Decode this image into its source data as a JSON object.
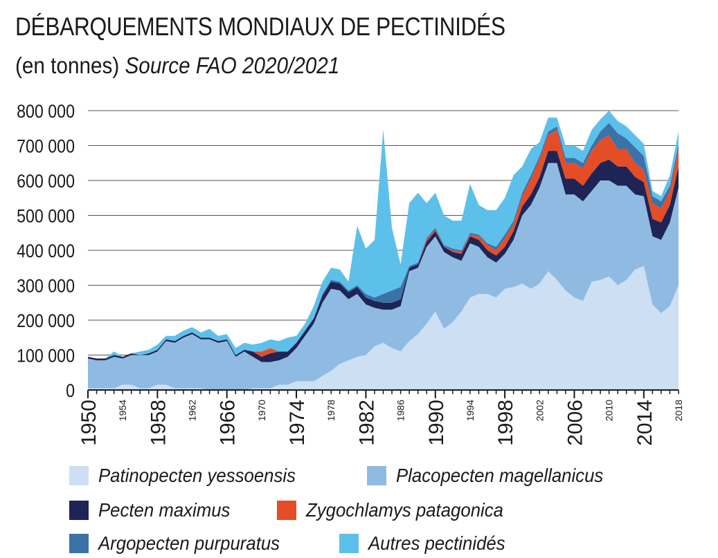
{
  "header": {
    "title": "DÉBARQUEMENTS MONDIAUX DE PECTINIDÉS",
    "subtitle_unit": "(en tonnes)",
    "subtitle_source": "Source FAO 2020/2021"
  },
  "chart_data": {
    "type": "area",
    "stacked": true,
    "x": [
      1950,
      1951,
      1952,
      1953,
      1954,
      1955,
      1956,
      1957,
      1958,
      1959,
      1960,
      1961,
      1962,
      1963,
      1964,
      1965,
      1966,
      1967,
      1968,
      1969,
      1970,
      1971,
      1972,
      1973,
      1974,
      1975,
      1976,
      1977,
      1978,
      1979,
      1980,
      1981,
      1982,
      1983,
      1984,
      1985,
      1986,
      1987,
      1988,
      1989,
      1990,
      1991,
      1992,
      1993,
      1994,
      1995,
      1996,
      1997,
      1998,
      1999,
      2000,
      2001,
      2002,
      2003,
      2004,
      2005,
      2006,
      2007,
      2008,
      2009,
      2010,
      2011,
      2012,
      2013,
      2014,
      2015,
      2016,
      2017,
      2018
    ],
    "ylim": [
      0,
      800000
    ],
    "y_ticks": [
      0,
      100000,
      200000,
      300000,
      400000,
      500000,
      600000,
      700000,
      800000
    ],
    "y_tick_labels": [
      "0",
      "100 000",
      "200 000",
      "300 000",
      "400 000",
      "500 000",
      "600 000",
      "700 000",
      "800 000"
    ],
    "x_ticks_major": [
      1950,
      1958,
      1966,
      1974,
      1982,
      1990,
      1998,
      2006,
      2014
    ],
    "x_tick_labels_major": [
      "1950",
      "1958",
      "1966",
      "1974",
      "1982",
      "1990",
      "1998",
      "2006",
      "2014"
    ],
    "x_ticks_minor": [
      1954,
      1962,
      1970,
      1978,
      1986,
      1994,
      2002,
      2010,
      2018
    ],
    "x_tick_labels_minor": [
      "1954",
      "1962",
      "1970",
      "1978",
      "1986",
      "1994",
      "2002",
      "2010",
      "2018"
    ],
    "grid": "horizontal",
    "legend_position": "bottom",
    "series": [
      {
        "name": "Patinopecten yessoensis",
        "color": "#cddff3",
        "values": [
          5000,
          5000,
          5000,
          5000,
          15000,
          15000,
          5000,
          5000,
          15000,
          15000,
          5000,
          5000,
          5000,
          5000,
          0,
          0,
          0,
          0,
          0,
          5000,
          5000,
          5000,
          15000,
          15000,
          25000,
          25000,
          25000,
          40000,
          55000,
          75000,
          85000,
          95000,
          100000,
          125000,
          135000,
          120000,
          110000,
          140000,
          160000,
          190000,
          225000,
          175000,
          195000,
          225000,
          265000,
          275000,
          275000,
          265000,
          290000,
          295000,
          305000,
          290000,
          305000,
          340000,
          315000,
          285000,
          265000,
          255000,
          310000,
          315000,
          325000,
          300000,
          315000,
          345000,
          355000,
          245000,
          220000,
          240000,
          300000
        ]
      },
      {
        "name": "Placopecten magellanicus",
        "color": "#8fbbe2",
        "values": [
          85000,
          80000,
          80000,
          90000,
          75000,
          85000,
          95000,
          95000,
          95000,
          125000,
          130000,
          145000,
          155000,
          140000,
          145000,
          135000,
          140000,
          95000,
          110000,
          90000,
          75000,
          75000,
          70000,
          80000,
          95000,
          130000,
          165000,
          210000,
          235000,
          210000,
          175000,
          180000,
          145000,
          110000,
          95000,
          110000,
          130000,
          200000,
          190000,
          220000,
          215000,
          220000,
          185000,
          145000,
          155000,
          135000,
          105000,
          100000,
          100000,
          135000,
          195000,
          240000,
          275000,
          310000,
          335000,
          275000,
          295000,
          285000,
          260000,
          285000,
          275000,
          285000,
          270000,
          215000,
          200000,
          195000,
          210000,
          240000,
          280000
        ]
      },
      {
        "name": "Pecten maximus",
        "color": "#1e2456",
        "values": [
          5000,
          5000,
          5000,
          5000,
          5000,
          5000,
          0,
          5000,
          5000,
          5000,
          5000,
          5000,
          5000,
          5000,
          5000,
          5000,
          5000,
          5000,
          5000,
          15000,
          15000,
          25000,
          25000,
          15000,
          15000,
          15000,
          15000,
          20000,
          20000,
          20000,
          20000,
          20000,
          20000,
          20000,
          20000,
          20000,
          20000,
          10000,
          10000,
          15000,
          15000,
          15000,
          15000,
          20000,
          20000,
          20000,
          20000,
          20000,
          20000,
          25000,
          25000,
          30000,
          30000,
          35000,
          35000,
          45000,
          45000,
          45000,
          50000,
          50000,
          60000,
          55000,
          55000,
          50000,
          40000,
          50000,
          50000,
          50000,
          60000
        ]
      },
      {
        "name": "Zygochlamys patagonica",
        "color": "#e54d26",
        "values": [
          0,
          0,
          0,
          0,
          0,
          0,
          0,
          0,
          0,
          0,
          0,
          0,
          0,
          0,
          0,
          0,
          0,
          0,
          0,
          0,
          15000,
          15000,
          0,
          0,
          0,
          0,
          0,
          0,
          0,
          0,
          0,
          0,
          0,
          0,
          0,
          0,
          0,
          0,
          0,
          5000,
          5000,
          0,
          5000,
          5000,
          5000,
          10000,
          15000,
          15000,
          25000,
          20000,
          30000,
          45000,
          50000,
          45000,
          60000,
          45000,
          45000,
          50000,
          65000,
          65000,
          70000,
          50000,
          50000,
          40000,
          35000,
          45000,
          40000,
          40000,
          50000
        ]
      },
      {
        "name": "Argopecten purpuratus",
        "color": "#3b72a8",
        "values": [
          0,
          0,
          0,
          0,
          0,
          0,
          0,
          0,
          0,
          0,
          0,
          0,
          0,
          0,
          0,
          0,
          0,
          0,
          0,
          0,
          0,
          0,
          0,
          0,
          0,
          0,
          0,
          5000,
          5000,
          5000,
          5000,
          5000,
          10000,
          10000,
          25000,
          35000,
          35000,
          5000,
          5000,
          5000,
          5000,
          5000,
          5000,
          5000,
          5000,
          5000,
          5000,
          10000,
          10000,
          10000,
          10000,
          10000,
          10000,
          10000,
          10000,
          15000,
          15000,
          15000,
          15000,
          25000,
          35000,
          45000,
          30000,
          45000,
          40000,
          20000,
          20000,
          15000,
          15000
        ]
      },
      {
        "name": "Autres pectinidés",
        "color": "#5dc0ea",
        "values": [
          0,
          0,
          0,
          10000,
          0,
          0,
          10000,
          10000,
          15000,
          10000,
          15000,
          15000,
          15000,
          15000,
          25000,
          15000,
          15000,
          20000,
          20000,
          20000,
          25000,
          25000,
          30000,
          40000,
          20000,
          20000,
          35000,
          35000,
          35000,
          35000,
          25000,
          170000,
          130000,
          165000,
          470000,
          180000,
          65000,
          180000,
          200000,
          100000,
          100000,
          85000,
          80000,
          85000,
          140000,
          85000,
          95000,
          105000,
          105000,
          130000,
          75000,
          75000,
          40000,
          40000,
          25000,
          35000,
          35000,
          35000,
          45000,
          35000,
          35000,
          35000,
          35000,
          35000,
          35000,
          15000,
          15000,
          30000,
          35000
        ]
      }
    ]
  },
  "legend": {
    "items": [
      {
        "label": "Patinopecten yessoensis",
        "color": "#cddff3"
      },
      {
        "label": "Placopecten magellanicus",
        "color": "#8fbbe2"
      },
      {
        "label": "Pecten maximus",
        "color": "#1e2456"
      },
      {
        "label": "Zygochlamys patagonica",
        "color": "#e54d26"
      },
      {
        "label": "Argopecten purpuratus",
        "color": "#3b72a8"
      },
      {
        "label": "Autres pectinidés",
        "color": "#5dc0ea"
      }
    ]
  }
}
